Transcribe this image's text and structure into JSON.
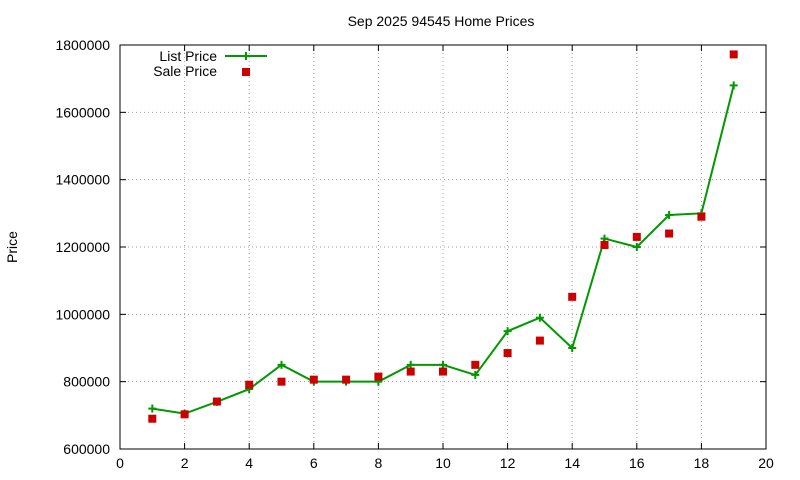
{
  "chart_data": {
    "type": "line",
    "title": "Sep 2025 94545 Home Prices",
    "xlabel": "",
    "ylabel": "Price",
    "xlim": [
      0,
      20
    ],
    "ylim": [
      600000,
      1800000
    ],
    "x_ticks": [
      0,
      2,
      4,
      6,
      8,
      10,
      12,
      14,
      16,
      18,
      20
    ],
    "y_ticks": [
      600000,
      800000,
      1000000,
      1200000,
      1400000,
      1600000,
      1800000
    ],
    "x_tick_labels": [
      "0",
      "2",
      "4",
      "6",
      "8",
      "10",
      "12",
      "14",
      "16",
      "18",
      "20"
    ],
    "y_tick_labels": [
      "600000",
      "800000",
      "1000000",
      "1200000",
      "1400000",
      "1600000",
      "1800000"
    ],
    "grid": true,
    "legend_position": "top-left",
    "series": [
      {
        "name": "List Price",
        "style": "line-plus",
        "color": "#009900",
        "x": [
          1,
          2,
          3,
          4,
          5,
          6,
          7,
          8,
          9,
          10,
          11,
          12,
          13,
          14,
          15,
          16,
          17,
          18,
          19
        ],
        "y": [
          720000,
          705000,
          740000,
          778000,
          850000,
          800000,
          800000,
          800000,
          850000,
          850000,
          820000,
          950000,
          990000,
          900000,
          1225000,
          1200000,
          1295000,
          1300000,
          1680000
        ]
      },
      {
        "name": "Sale Price",
        "style": "square",
        "color": "#cc0000",
        "x": [
          1,
          2,
          3,
          4,
          5,
          6,
          7,
          8,
          9,
          10,
          11,
          12,
          13,
          14,
          15,
          16,
          17,
          18,
          19
        ],
        "y": [
          690000,
          703000,
          741000,
          791000,
          800000,
          806000,
          806000,
          815000,
          830000,
          830000,
          850000,
          885000,
          922000,
          1052000,
          1206000,
          1230000,
          1240000,
          1290000,
          1772000
        ]
      }
    ]
  }
}
